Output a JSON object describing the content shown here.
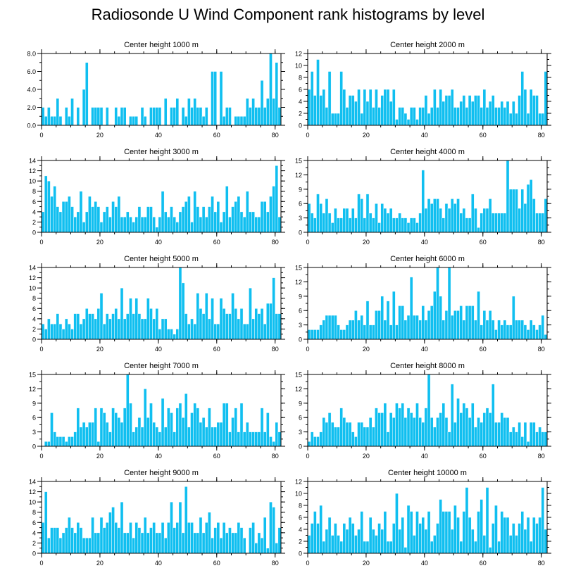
{
  "figure": {
    "title": "Radiosonde U Wind Component rank histograms by level"
  },
  "style": {
    "bar_color": "#10bff0",
    "bar_edge": "#ffffff",
    "axis_color": "#000000"
  },
  "chart_data": [
    {
      "type": "bar",
      "title": "Center height 1000 m",
      "xlim": [
        0,
        82
      ],
      "ylim": [
        0,
        8
      ],
      "yticks": [
        0,
        2,
        4,
        6,
        8
      ],
      "ytick_labels": [
        "0.0",
        "2.0",
        "4.0",
        "6.0",
        "8.0"
      ],
      "xticks": [
        0,
        20,
        40,
        60,
        80
      ],
      "xtick_labels": [
        "0",
        "20",
        "40",
        "60",
        "80"
      ],
      "values": [
        2,
        1,
        2,
        1,
        1,
        3,
        1,
        0,
        2,
        1,
        3,
        0,
        2,
        0,
        4,
        7,
        0,
        2,
        2,
        2,
        2,
        0,
        2,
        0,
        0,
        2,
        1,
        2,
        2,
        0,
        1,
        1,
        1,
        0,
        2,
        1,
        0,
        2,
        2,
        2,
        2,
        0,
        3,
        0,
        2,
        2,
        3,
        0,
        2,
        1,
        3,
        2,
        3,
        2,
        2,
        1,
        2,
        0,
        6,
        6,
        0,
        6,
        1,
        2,
        2,
        0,
        1,
        1,
        1,
        1,
        3,
        2,
        3,
        2,
        2,
        5,
        2,
        3,
        8,
        3,
        7,
        2
      ]
    },
    {
      "type": "bar",
      "title": "Center height 2000 m",
      "xlim": [
        0,
        82
      ],
      "ylim": [
        0,
        12
      ],
      "yticks": [
        0,
        2,
        4,
        6,
        8,
        10,
        12
      ],
      "ytick_labels": [
        "0",
        "2",
        "4",
        "6",
        "8",
        "10",
        "12"
      ],
      "xticks": [
        0,
        20,
        40,
        60,
        80
      ],
      "xtick_labels": [
        "0",
        "20",
        "40",
        "60",
        "80"
      ],
      "values": [
        6,
        9,
        5,
        11,
        5,
        6,
        3,
        9,
        2,
        2,
        2,
        9,
        6,
        3,
        5,
        5,
        4,
        6,
        2,
        6,
        4,
        6,
        3,
        6,
        3,
        5,
        6,
        6,
        4,
        6,
        1,
        3,
        3,
        2,
        1,
        3,
        3,
        1,
        3,
        3,
        5,
        2,
        3,
        6,
        3,
        6,
        4,
        5,
        5,
        6,
        3,
        3,
        4,
        5,
        3,
        5,
        4,
        5,
        5,
        3,
        6,
        3,
        4,
        5,
        3,
        3,
        4,
        3,
        4,
        2,
        4,
        2,
        5,
        9,
        6,
        2,
        6,
        5,
        5,
        2,
        2,
        9
      ]
    },
    {
      "type": "bar",
      "title": "Center height 3000 m",
      "xlim": [
        0,
        82
      ],
      "ylim": [
        0,
        14
      ],
      "yticks": [
        0,
        2,
        4,
        6,
        8,
        10,
        12,
        14
      ],
      "ytick_labels": [
        "0",
        "2",
        "4",
        "6",
        "8",
        "10",
        "12",
        "14"
      ],
      "xticks": [
        0,
        20,
        40,
        60,
        80
      ],
      "xtick_labels": [
        "0",
        "20",
        "40",
        "60",
        "80"
      ],
      "values": [
        4,
        11,
        10,
        7,
        9,
        5,
        4,
        6,
        6,
        7,
        5,
        3,
        4,
        8,
        2,
        4,
        7,
        5,
        6,
        5,
        2,
        4,
        5,
        3,
        6,
        5,
        7,
        3,
        3,
        4,
        3,
        2,
        3,
        5,
        3,
        3,
        5,
        5,
        3,
        1,
        3,
        8,
        4,
        3,
        5,
        3,
        2,
        4,
        5,
        6,
        7,
        2,
        8,
        5,
        3,
        5,
        3,
        5,
        7,
        4,
        6,
        2,
        4,
        9,
        3,
        5,
        6,
        7,
        4,
        3,
        8,
        4,
        4,
        3,
        3,
        6,
        6,
        4,
        7,
        9,
        13,
        3
      ]
    },
    {
      "type": "bar",
      "title": "Center height 4000 m",
      "xlim": [
        0,
        82
      ],
      "ylim": [
        0,
        15
      ],
      "yticks": [
        0,
        3,
        6,
        9,
        12,
        15
      ],
      "ytick_labels": [
        "0",
        "3",
        "6",
        "9",
        "12",
        "15"
      ],
      "xticks": [
        0,
        20,
        40,
        60,
        80
      ],
      "xtick_labels": [
        "0",
        "20",
        "40",
        "60",
        "80"
      ],
      "values": [
        6,
        4,
        3,
        8,
        6,
        4,
        7,
        4,
        2,
        5,
        3,
        3,
        5,
        5,
        3,
        5,
        3,
        8,
        7,
        3,
        8,
        4,
        3,
        6,
        2,
        6,
        5,
        4,
        5,
        3,
        3,
        4,
        3,
        3,
        2,
        3,
        3,
        2,
        4,
        13,
        5,
        7,
        6,
        7,
        7,
        5,
        3,
        6,
        5,
        7,
        6,
        7,
        4,
        5,
        3,
        3,
        8,
        5,
        1,
        4,
        5,
        5,
        7,
        4,
        4,
        4,
        4,
        4,
        15,
        9,
        9,
        9,
        5,
        9,
        6,
        10,
        11,
        7,
        4,
        4,
        4,
        7
      ]
    },
    {
      "type": "bar",
      "title": "Center height 5000 m",
      "xlim": [
        0,
        82
      ],
      "ylim": [
        0,
        14
      ],
      "yticks": [
        0,
        2,
        4,
        6,
        8,
        10,
        12,
        14
      ],
      "ytick_labels": [
        "0",
        "2",
        "4",
        "6",
        "8",
        "10",
        "12",
        "14"
      ],
      "xticks": [
        0,
        20,
        40,
        60,
        80
      ],
      "xtick_labels": [
        "0",
        "20",
        "40",
        "60",
        "80"
      ],
      "values": [
        3,
        2,
        4,
        3,
        3,
        5,
        3,
        2,
        4,
        3,
        2,
        5,
        5,
        3,
        4,
        6,
        5,
        5,
        4,
        6,
        9,
        3,
        5,
        4,
        5,
        6,
        4,
        10,
        4,
        5,
        8,
        5,
        8,
        5,
        4,
        4,
        8,
        6,
        4,
        6,
        2,
        4,
        4,
        2,
        2,
        1,
        2,
        14,
        11,
        5,
        3,
        4,
        3,
        9,
        6,
        5,
        9,
        4,
        8,
        3,
        3,
        8,
        6,
        5,
        5,
        9,
        6,
        4,
        6,
        3,
        3,
        10,
        4,
        6,
        5,
        6,
        3,
        7,
        7,
        12,
        5,
        5
      ]
    },
    {
      "type": "bar",
      "title": "Center height 6000 m",
      "xlim": [
        0,
        82
      ],
      "ylim": [
        0,
        15
      ],
      "yticks": [
        0,
        3,
        6,
        9,
        12,
        15
      ],
      "ytick_labels": [
        "0",
        "3",
        "6",
        "9",
        "12",
        "15"
      ],
      "xticks": [
        0,
        20,
        40,
        60,
        80
      ],
      "xtick_labels": [
        "0",
        "20",
        "40",
        "60",
        "80"
      ],
      "values": [
        2,
        2,
        2,
        2,
        3,
        4,
        5,
        5,
        5,
        5,
        3,
        2,
        2,
        3,
        4,
        4,
        6,
        4,
        5,
        3,
        8,
        3,
        3,
        6,
        6,
        9,
        4,
        8,
        3,
        10,
        3,
        7,
        7,
        4,
        5,
        13,
        5,
        5,
        4,
        7,
        4,
        6,
        7,
        10,
        15,
        9,
        4,
        6,
        15,
        5,
        6,
        6,
        7,
        4,
        7,
        7,
        7,
        4,
        10,
        3,
        6,
        4,
        6,
        4,
        2,
        4,
        3,
        4,
        3,
        3,
        9,
        4,
        4,
        4,
        3,
        2,
        4,
        3,
        2,
        3,
        5,
        1
      ]
    },
    {
      "type": "bar",
      "title": "Center height 7000 m",
      "xlim": [
        0,
        82
      ],
      "ylim": [
        0,
        15
      ],
      "yticks": [
        0,
        3,
        6,
        9,
        12,
        15
      ],
      "ytick_labels": [
        "0",
        "3",
        "6",
        "9",
        "12",
        "15"
      ],
      "xticks": [
        0,
        20,
        40,
        60,
        80
      ],
      "xtick_labels": [
        "0",
        "20",
        "40",
        "60",
        "80"
      ],
      "values": [
        0,
        1,
        1,
        7,
        3,
        2,
        2,
        2,
        1,
        2,
        2,
        3,
        8,
        4,
        5,
        4,
        5,
        5,
        8,
        1,
        8,
        7,
        5,
        3,
        8,
        7,
        6,
        5,
        8,
        15,
        9,
        3,
        4,
        6,
        4,
        12,
        6,
        9,
        5,
        4,
        3,
        10,
        4,
        8,
        7,
        3,
        8,
        9,
        6,
        11,
        4,
        7,
        9,
        8,
        5,
        6,
        4,
        8,
        4,
        4,
        5,
        5,
        9,
        9,
        3,
        6,
        8,
        3,
        9,
        3,
        5,
        3,
        3,
        3,
        3,
        8,
        3,
        7,
        2,
        1,
        5,
        3
      ]
    },
    {
      "type": "bar",
      "title": "Center height 8000 m",
      "xlim": [
        0,
        82
      ],
      "ylim": [
        0,
        15
      ],
      "yticks": [
        0,
        3,
        6,
        9,
        12,
        15
      ],
      "ytick_labels": [
        "0",
        "3",
        "6",
        "9",
        "12",
        "15"
      ],
      "xticks": [
        0,
        20,
        40,
        60,
        80
      ],
      "xtick_labels": [
        "0",
        "20",
        "40",
        "60",
        "80"
      ],
      "values": [
        1,
        3,
        2,
        2,
        3,
        6,
        5,
        7,
        5,
        4,
        4,
        8,
        6,
        5,
        5,
        3,
        2,
        5,
        5,
        4,
        4,
        6,
        4,
        8,
        7,
        7,
        9,
        3,
        7,
        6,
        9,
        8,
        9,
        6,
        8,
        7,
        6,
        9,
        6,
        5,
        8,
        15,
        6,
        4,
        6,
        7,
        9,
        6,
        3,
        13,
        5,
        10,
        7,
        9,
        8,
        6,
        9,
        4,
        6,
        5,
        7,
        8,
        7,
        13,
        5,
        5,
        7,
        6,
        6,
        3,
        4,
        3,
        5,
        2,
        5,
        1,
        5,
        5,
        3,
        4,
        3,
        3
      ]
    },
    {
      "type": "bar",
      "title": "Center height 9000 m",
      "xlim": [
        0,
        82
      ],
      "ylim": [
        0,
        14
      ],
      "yticks": [
        0,
        2,
        4,
        6,
        8,
        10,
        12,
        14
      ],
      "ytick_labels": [
        "0",
        "2",
        "4",
        "6",
        "8",
        "10",
        "12",
        "14"
      ],
      "xticks": [
        0,
        20,
        40,
        60,
        80
      ],
      "xtick_labels": [
        "0",
        "20",
        "40",
        "60",
        "80"
      ],
      "values": [
        6,
        12,
        3,
        5,
        5,
        5,
        3,
        4,
        5,
        7,
        5,
        4,
        6,
        5,
        3,
        3,
        3,
        7,
        4,
        4,
        7,
        5,
        6,
        8,
        9,
        6,
        5,
        10,
        4,
        4,
        6,
        3,
        6,
        5,
        4,
        7,
        4,
        5,
        6,
        4,
        4,
        6,
        3,
        6,
        10,
        5,
        6,
        10,
        4,
        13,
        6,
        6,
        4,
        4,
        7,
        4,
        6,
        8,
        3,
        5,
        6,
        3,
        6,
        4,
        5,
        4,
        4,
        6,
        5,
        3,
        0,
        5,
        6,
        2,
        4,
        3,
        7,
        1,
        10,
        9,
        2,
        5
      ]
    },
    {
      "type": "bar",
      "title": "Center height 10000 m",
      "xlim": [
        0,
        82
      ],
      "ylim": [
        0,
        12
      ],
      "yticks": [
        0,
        2,
        4,
        6,
        8,
        10,
        12
      ],
      "ytick_labels": [
        "0",
        "2",
        "4",
        "6",
        "8",
        "10",
        "12"
      ],
      "xticks": [
        0,
        20,
        40,
        60,
        80
      ],
      "xtick_labels": [
        "0",
        "20",
        "40",
        "60",
        "80"
      ],
      "values": [
        3,
        5,
        7,
        5,
        8,
        2,
        4,
        6,
        3,
        5,
        3,
        2,
        5,
        4,
        6,
        5,
        3,
        4,
        7,
        2,
        2,
        6,
        4,
        3,
        5,
        4,
        7,
        2,
        2,
        5,
        10,
        4,
        6,
        1,
        8,
        7,
        3,
        7,
        5,
        6,
        4,
        7,
        2,
        3,
        5,
        9,
        7,
        7,
        7,
        4,
        8,
        6,
        2,
        7,
        11,
        6,
        4,
        2,
        7,
        9,
        3,
        11,
        1,
        5,
        8,
        2,
        7,
        6,
        6,
        3,
        5,
        3,
        5,
        7,
        4,
        6,
        2,
        6,
        5,
        6,
        11,
        4
      ]
    }
  ]
}
